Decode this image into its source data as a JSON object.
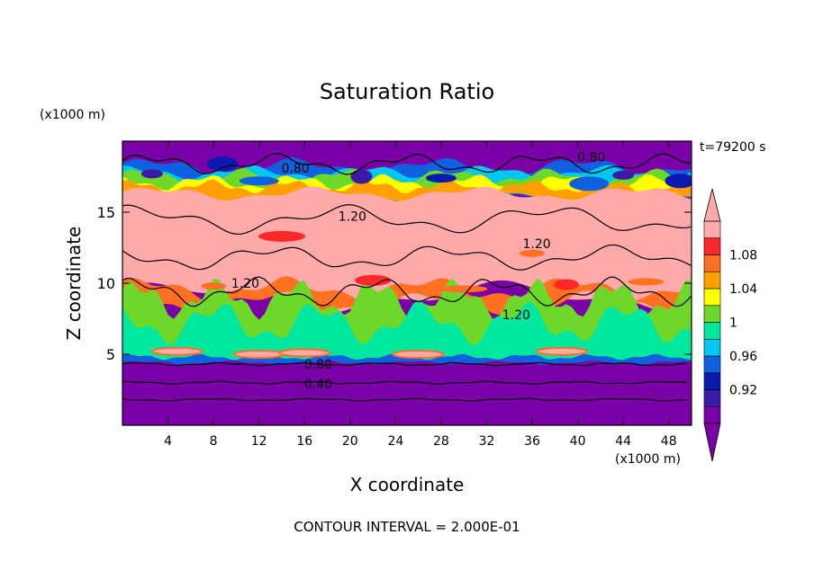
{
  "title": "Saturation Ratio",
  "y_unit": "(x1000 m)",
  "x_unit": "(x1000 m)",
  "time_label": "t=79200 s",
  "footer": "CONTOUR INTERVAL = 2.000E-01",
  "chart_data": {
    "type": "heatmap",
    "title": "Saturation Ratio",
    "xlabel": "X coordinate",
    "ylabel": "Z coordinate",
    "x_unit": "(x1000 m)",
    "y_unit": "(x1000 m)",
    "xlim": [
      0,
      50
    ],
    "ylim": [
      0,
      20
    ],
    "x_ticks": [
      4,
      8,
      12,
      16,
      20,
      24,
      28,
      32,
      36,
      40,
      44,
      48
    ],
    "y_ticks": [
      5,
      10,
      15
    ],
    "colorbar": {
      "levels": [
        0.92,
        0.96,
        1,
        1.04,
        1.08
      ],
      "level_labels": [
        "0.92",
        "0.96",
        "1",
        "1.04",
        "1.08"
      ],
      "colors": [
        "#7a00a8",
        "#3a1aa6",
        "#0a1ab0",
        "#1060e0",
        "#00c8f0",
        "#00e8a0",
        "#6ed82a",
        "#ffff00",
        "#ffa000",
        "#ff7020",
        "#ff2828",
        "#ffaaaa"
      ],
      "extend": "both"
    },
    "contour_labels": [
      {
        "text": "0.80",
        "x": 15.2,
        "y": 18.1
      },
      {
        "text": "0.80",
        "x": 41.2,
        "y": 18.9
      },
      {
        "text": "1.20",
        "x": 20.2,
        "y": 14.7
      },
      {
        "text": "1.20",
        "x": 36.4,
        "y": 12.8
      },
      {
        "text": "1.20",
        "x": 10.8,
        "y": 10.0
      },
      {
        "text": "1.20",
        "x": 34.6,
        "y": 7.8
      },
      {
        "text": "0.80",
        "x": 17.2,
        "y": 4.3
      },
      {
        "text": "0.40",
        "x": 17.2,
        "y": 2.9
      }
    ],
    "contour_interval": "2.000E-01",
    "time": "t=79200 s"
  }
}
